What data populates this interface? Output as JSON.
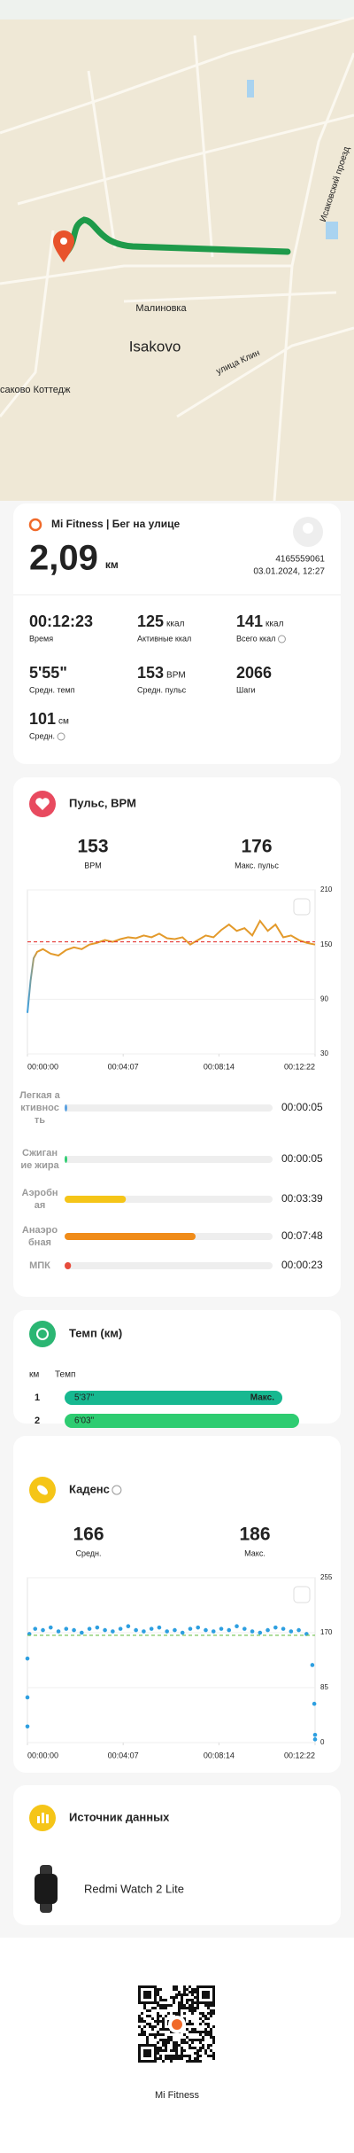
{
  "map": {
    "labels": [
      "Малиновка",
      "Isakovo",
      "Исаковский проезд",
      "улица Клин",
      "саково Коттедж"
    ]
  },
  "summary": {
    "title": "Mi Fitness | Бег на улице",
    "distance": "2,09",
    "distance_unit": "км",
    "user_id": "4165559061",
    "date": "03.01.2024, 12:27",
    "stats": [
      {
        "value": "00:12:23",
        "label": "Время"
      },
      {
        "value": 125,
        "unit": "ккал",
        "label": "Активные ккал"
      },
      {
        "value": 141,
        "unit": "ккал",
        "label": "Всего ккал"
      },
      {
        "value": "5'55\"",
        "label": "Средн. темп"
      },
      {
        "value": 153,
        "unit": "BPM",
        "label": "Средн. пульс"
      },
      {
        "value": 2066,
        "label": "Шаги"
      },
      {
        "value": 101,
        "unit": "см",
        "label": "Средн."
      }
    ]
  },
  "pulse": {
    "title": "Пульс, BPM",
    "avg": 153,
    "avg_label": "BPM",
    "max": 176,
    "max_label": "Макс. пульс",
    "chart": {
      "type": "line",
      "x": [
        0,
        8,
        16,
        25,
        40,
        60,
        80,
        100,
        120,
        140,
        160,
        180,
        200,
        220,
        240,
        260,
        280,
        300,
        320,
        340,
        360,
        380,
        400,
        420,
        440,
        460,
        480,
        500,
        520,
        540,
        560,
        580,
        600,
        620,
        640,
        660,
        680,
        700,
        720,
        742
      ],
      "values": [
        75,
        110,
        135,
        142,
        145,
        140,
        138,
        144,
        147,
        145,
        150,
        152,
        155,
        153,
        156,
        158,
        157,
        160,
        158,
        162,
        157,
        156,
        158,
        150,
        155,
        160,
        158,
        166,
        172,
        165,
        168,
        160,
        176,
        165,
        172,
        158,
        160,
        155,
        152,
        150
      ],
      "color": "#e39a2b",
      "start_color": "#3a9fe0",
      "avg_line_color": "#e53935",
      "xlim": [
        0,
        742
      ],
      "xticks": [
        {
          "value": 0,
          "label": "00:00:00"
        },
        {
          "value": 247,
          "label": "00:04:07"
        },
        {
          "value": 494,
          "label": "00:08:14"
        },
        {
          "value": 742,
          "label": "00:12:22"
        }
      ],
      "ylim": [
        30,
        210
      ],
      "yticks": [
        30,
        90,
        150,
        210
      ]
    },
    "zones": [
      {
        "name": "Легкая активность",
        "time": "00:00:05",
        "color": "#5aa0e0"
      },
      {
        "name": "Сжигание жира",
        "time": "00:00:05",
        "color": "#2ecc71"
      },
      {
        "name": "Аэробная",
        "time": "00:03:39",
        "color": "#f5c518"
      },
      {
        "name": "Анаэробная",
        "time": "00:07:48",
        "color": "#f08c1a"
      },
      {
        "name": "МПК",
        "time": "00:00:23",
        "color": "#e74c3c"
      }
    ]
  },
  "tempo": {
    "title": "Темп (км)",
    "col_km": "км",
    "col_pace": "Темп",
    "rows": [
      {
        "km": 1,
        "pace": "5'37\"",
        "note": "Макс.",
        "color": "#17b890"
      },
      {
        "km": 2,
        "pace": "6'03\"",
        "color": "#2ecc71"
      }
    ]
  },
  "cadence": {
    "title": "Каденс",
    "avg": 166,
    "avg_label": "Средн.",
    "max": 186,
    "max_label": "Макс.",
    "chart": {
      "type": "scatter",
      "x": [
        0,
        0,
        0,
        5,
        20,
        40,
        60,
        80,
        100,
        120,
        140,
        160,
        180,
        200,
        220,
        240,
        260,
        280,
        300,
        320,
        340,
        360,
        380,
        400,
        420,
        440,
        460,
        480,
        500,
        520,
        540,
        560,
        580,
        600,
        620,
        640,
        660,
        680,
        700,
        720,
        735,
        740,
        742,
        742
      ],
      "values": [
        130,
        70,
        25,
        168,
        176,
        174,
        178,
        172,
        176,
        174,
        170,
        176,
        178,
        174,
        172,
        176,
        180,
        174,
        172,
        176,
        178,
        172,
        174,
        170,
        176,
        178,
        174,
        172,
        176,
        174,
        180,
        176,
        172,
        170,
        174,
        178,
        176,
        172,
        174,
        168,
        120,
        60,
        12,
        5
      ],
      "color": "#2e9fe0",
      "avg_line_color": "#6cc04a",
      "xlim": [
        0,
        742
      ],
      "xticks": [
        {
          "value": 0,
          "label": "00:00:00"
        },
        {
          "value": 247,
          "label": "00:04:07"
        },
        {
          "value": 494,
          "label": "00:08:14"
        },
        {
          "value": 742,
          "label": "00:12:22"
        }
      ],
      "ylim": [
        0,
        255
      ],
      "yticks": [
        0,
        85,
        170,
        255
      ]
    }
  },
  "source": {
    "title": "Источник данных",
    "device": "Redmi Watch 2 Lite"
  },
  "footer": {
    "app": "Mi Fitness"
  }
}
